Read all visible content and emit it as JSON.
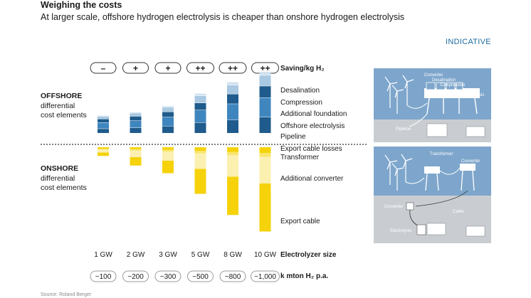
{
  "header": {
    "title": "Weighing the costs",
    "subtitle": "At larger scale, offshore hydrogen electrolysis is cheaper than onshore hydrogen electrolysis",
    "badge": "INDICATIVE"
  },
  "source": "Source: Roland Berger",
  "sections": {
    "offshore_title": "OFFSHORE",
    "offshore_line1": "differential",
    "offshore_line2": "cost elements",
    "onshore_title": "ONSHORE",
    "onshore_line1": "differential",
    "onshore_line2": "cost elements"
  },
  "row_labels": {
    "saving": "Saving/kg H₂",
    "size": "Electrolyzer size",
    "kmton": "k mton H₂ p.a."
  },
  "illustration": {
    "offshore_labels": [
      "Converter",
      "Desalination",
      "Compression",
      "Electrolysis",
      "Pipeline"
    ],
    "onshore_labels": [
      "Transformer",
      "Converter",
      "Converter",
      "Cable",
      "Electrolysis"
    ]
  },
  "colors": {
    "offshore_dark": "#1f5b8c",
    "offshore_mid": "#3f86bf",
    "offshore_light": "#a9c8e2",
    "offshore_pale": "#d2e2ef",
    "onshore_strong": "#f5d20a",
    "onshore_mid": "#f8e56b",
    "onshore_pale": "#fbf0b0",
    "panel_blue": "#7ea6cc",
    "panel_grey": "#c9cdd1"
  },
  "chart_data": {
    "type": "bar",
    "categories": [
      "1 GW",
      "2 GW",
      "3 GW",
      "5 GW",
      "8 GW",
      "10 GW"
    ],
    "saving": [
      "–",
      "+",
      "+",
      "++",
      "++",
      "++"
    ],
    "production_kmton": [
      "~100",
      "~200",
      "~300",
      "~500",
      "~800",
      "~1,000"
    ],
    "offshore_series": [
      {
        "name": "Pipeline",
        "values": [
          2.5,
          3,
          4,
          6,
          7.5,
          9
        ]
      },
      {
        "name": "Offshore electrolysis",
        "values": [
          3.5,
          4,
          5,
          7,
          9,
          11
        ]
      },
      {
        "name": "Additional foundation",
        "values": [
          2,
          2.5,
          3,
          4,
          5.5,
          6.5
        ]
      },
      {
        "name": "Compression",
        "values": [
          1.5,
          1.8,
          2.5,
          4,
          5,
          6
        ]
      },
      {
        "name": "Desalination",
        "values": [
          0.5,
          0.6,
          0.8,
          1.3,
          1.8,
          2.2
        ]
      }
    ],
    "onshore_series": [
      {
        "name": "Export cable losses",
        "values": [
          0.8,
          1,
          1.4,
          2,
          2.6,
          3.2
        ]
      },
      {
        "name": "Transformer",
        "values": [
          0.6,
          0.8,
          1,
          1.5,
          1.8,
          2.2
        ]
      },
      {
        "name": "Additional converter",
        "values": [
          1.6,
          3.8,
          5.2,
          8.7,
          12.2,
          15
        ]
      },
      {
        "name": "Export cable",
        "values": [
          1.9,
          4.7,
          7,
          14,
          21.5,
          27
        ]
      }
    ]
  }
}
